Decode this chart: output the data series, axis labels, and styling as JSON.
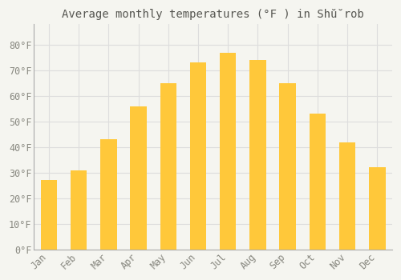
{
  "title": "Average monthly temperatures (°F ) in Shŭ̆rob",
  "months": [
    "Jan",
    "Feb",
    "Mar",
    "Apr",
    "May",
    "Jun",
    "Jul",
    "Aug",
    "Sep",
    "Oct",
    "Nov",
    "Dec"
  ],
  "values": [
    27,
    31,
    43,
    56,
    65,
    73,
    77,
    74,
    65,
    53,
    42,
    32
  ],
  "bar_color_top": "#FFC83A",
  "bar_color_bottom": "#F5A800",
  "bar_edge_color": "none",
  "background_color": "#F5F5F0",
  "plot_bg_color": "#F5F5F0",
  "grid_color": "#DDDDDD",
  "text_color": "#888880",
  "spine_color": "#AAAAAA",
  "ylim": [
    0,
    88
  ],
  "yticks": [
    0,
    10,
    20,
    30,
    40,
    50,
    60,
    70,
    80
  ],
  "title_fontsize": 10,
  "tick_fontsize": 8.5,
  "figsize": [
    5.0,
    3.5
  ],
  "dpi": 100
}
